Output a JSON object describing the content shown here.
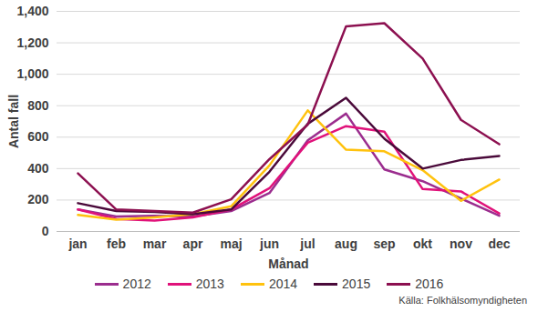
{
  "chart_data": {
    "type": "line",
    "x_label": "Månad",
    "y_label": "Antal fall",
    "caption": "Källa: Folkhälsomyndigheten",
    "categories": [
      "jan",
      "feb",
      "mar",
      "apr",
      "maj",
      "jun",
      "jul",
      "aug",
      "sep",
      "okt",
      "nov",
      "dec"
    ],
    "series": [
      {
        "name": "2012",
        "color": "#9b2d8e",
        "values": [
          140,
          95,
          100,
          95,
          130,
          245,
          580,
          750,
          395,
          320,
          210,
          100
        ]
      },
      {
        "name": "2013",
        "color": "#e0127a",
        "values": [
          140,
          80,
          70,
          90,
          140,
          275,
          565,
          670,
          635,
          270,
          255,
          115
        ]
      },
      {
        "name": "2014",
        "color": "#ffc20e",
        "values": [
          105,
          75,
          90,
          110,
          160,
          420,
          770,
          520,
          510,
          390,
          195,
          330
        ]
      },
      {
        "name": "2015",
        "color": "#4a0a3a",
        "values": [
          180,
          130,
          125,
          110,
          140,
          380,
          685,
          850,
          590,
          400,
          455,
          480
        ]
      },
      {
        "name": "2016",
        "color": "#8c1050",
        "values": [
          370,
          140,
          130,
          120,
          205,
          460,
          680,
          1305,
          1325,
          1100,
          710,
          555
        ]
      }
    ],
    "ylim": [
      0,
      1400
    ],
    "yticks": [
      0,
      200,
      400,
      600,
      800,
      1000,
      1200,
      1400
    ],
    "grid": true,
    "legend": "bottom"
  }
}
